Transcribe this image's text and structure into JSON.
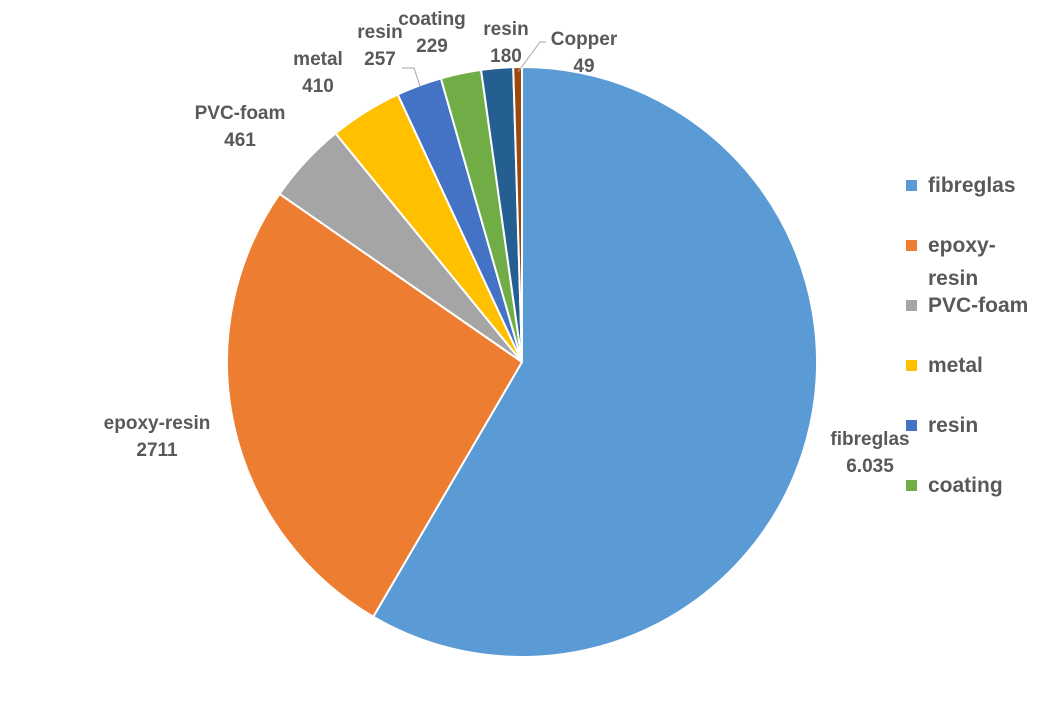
{
  "chart_data": {
    "type": "pie",
    "categories": [
      "fibreglas",
      "epoxy-resin",
      "PVC-foam",
      "metal",
      "resin",
      "coating",
      "resin",
      "Copper"
    ],
    "values": [
      6035,
      2711,
      461,
      410,
      257,
      229,
      180,
      49
    ],
    "value_labels": [
      "6.035",
      "2711",
      "461",
      "410",
      "257",
      "229",
      "180",
      "49"
    ],
    "colors": [
      "#5b9bd5",
      "#ed7d31",
      "#a5a5a5",
      "#ffc000",
      "#4472c4",
      "#70ad47",
      "#255e91",
      "#9e480e"
    ],
    "legend": "right"
  }
}
